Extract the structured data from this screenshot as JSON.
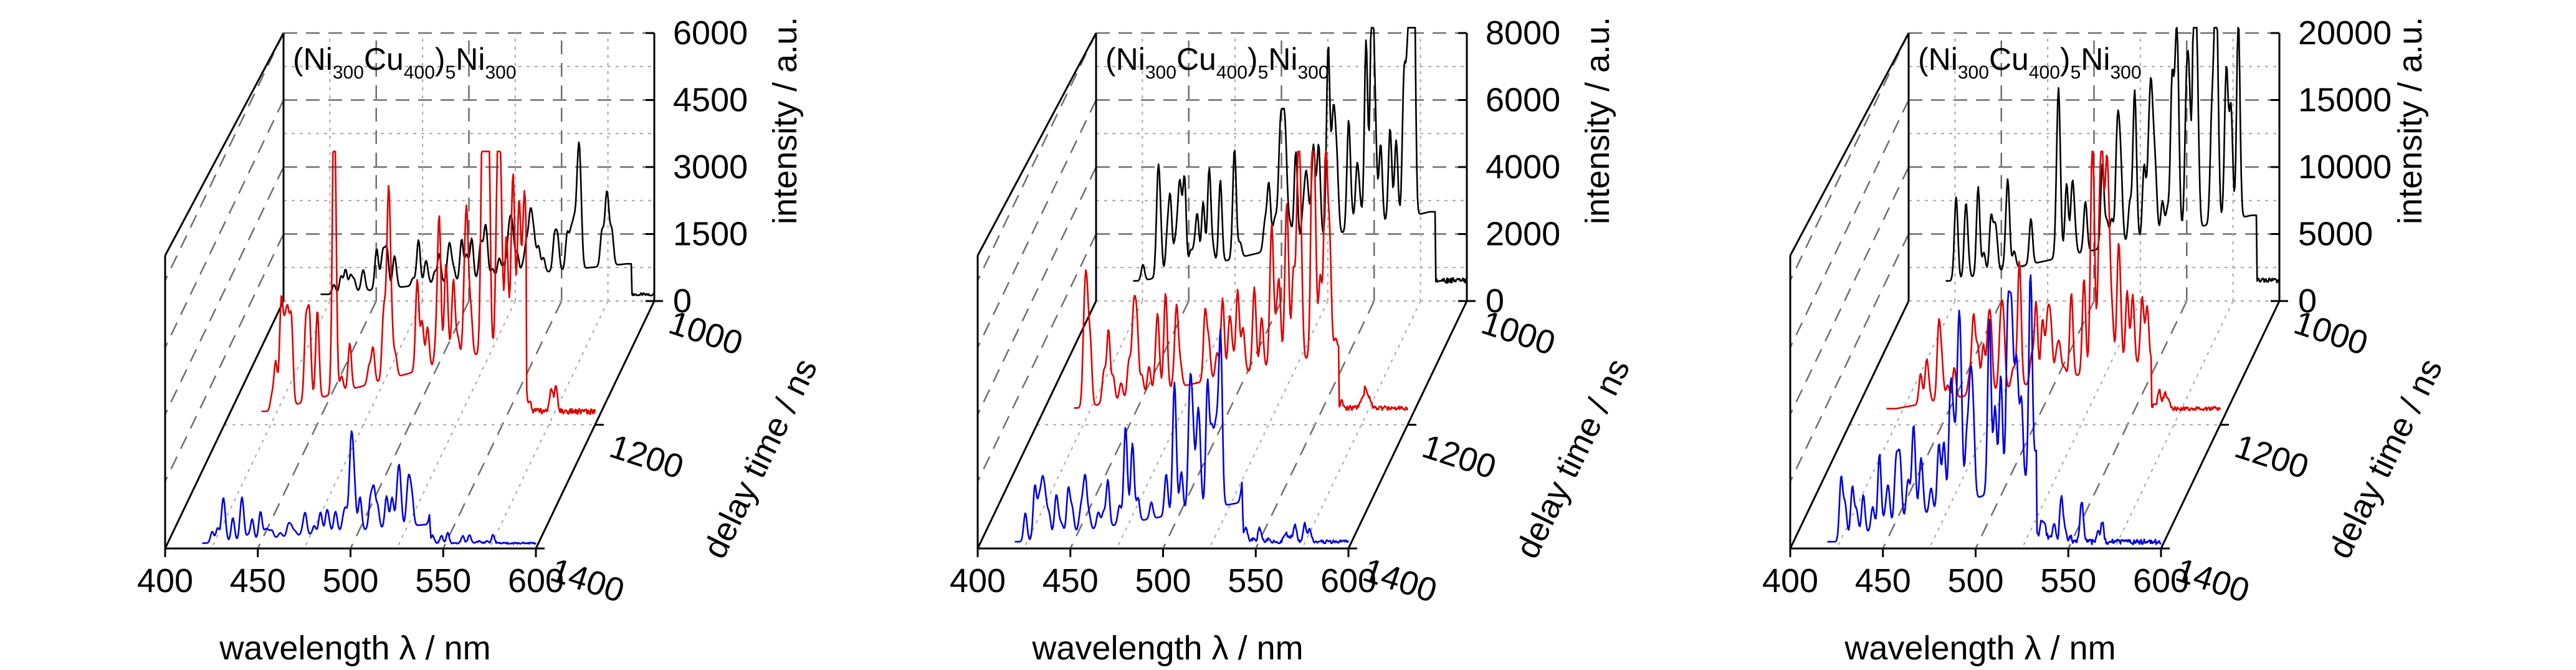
{
  "chart_data": [
    {
      "type": "line",
      "title_parts": [
        "(Ni",
        "300",
        "Cu",
        "400",
        ")",
        "5",
        "Ni",
        "300"
      ],
      "xlabel": "wavelength λ / nm",
      "ylabel": "delay time / ns",
      "zlabel": "intensity / a.u.",
      "xlim": [
        400,
        600
      ],
      "xticks": [
        "400",
        "450",
        "500",
        "550",
        "600"
      ],
      "yticks": [
        "1000",
        "1200",
        "1400"
      ],
      "zlim": [
        0,
        6000
      ],
      "zticks": [
        "0",
        "1500",
        "3000",
        "4500",
        "6000"
      ],
      "series": [
        {
          "delay": 1000,
          "color": "#000000",
          "baseline": 150,
          "peak": 2100,
          "high": [
            555,
            585
          ]
        },
        {
          "delay": 1200,
          "color": "#e00000",
          "baseline": 300,
          "peak": 4700,
          "high": [
            535,
            560
          ]
        },
        {
          "delay": 1400,
          "color": "#0000e0",
          "baseline": 120,
          "peak": 1300,
          "high": [
            500,
            540
          ]
        }
      ]
    },
    {
      "type": "line",
      "title_parts": [
        "(Ni",
        "300",
        "Cu",
        "400",
        ")",
        "5",
        "Ni",
        "300"
      ],
      "xlabel": "wavelength λ / nm",
      "ylabel": "delay time / ns",
      "zlabel": "intensity / a.u.",
      "xlim": [
        400,
        600
      ],
      "xticks": [
        "400",
        "450",
        "500",
        "550",
        "600"
      ],
      "yticks": [
        "1000",
        "1200",
        "1400"
      ],
      "zlim": [
        0,
        8000
      ],
      "zticks": [
        "0",
        "2000",
        "4000",
        "6000",
        "8000"
      ],
      "series": [
        {
          "delay": 1000,
          "color": "#000000",
          "baseline": 600,
          "peak": 6500,
          "high": [
            545,
            580
          ]
        },
        {
          "delay": 1200,
          "color": "#e00000",
          "baseline": 500,
          "peak": 5200,
          "high": [
            530,
            560
          ]
        },
        {
          "delay": 1400,
          "color": "#0000e0",
          "baseline": 200,
          "peak": 3500,
          "high": [
            505,
            540
          ]
        }
      ]
    },
    {
      "type": "line",
      "title_parts": [
        "(Ni",
        "300",
        "Cu",
        "400",
        ")",
        "5",
        "Ni",
        "300"
      ],
      "xlabel": "wavelength λ / nm",
      "ylabel": "delay time / ns",
      "zlabel": "intensity / a.u.",
      "xlim": [
        400,
        600
      ],
      "xticks": [
        "400",
        "450",
        "500",
        "550",
        "600"
      ],
      "yticks": [
        "1000",
        "1200",
        "1400"
      ],
      "zlim": [
        0,
        20000
      ],
      "zticks": [
        "0",
        "5000",
        "10000",
        "15000",
        "20000"
      ],
      "series": [
        {
          "delay": 1000,
          "color": "#000000",
          "baseline": 1500,
          "peak": 15500,
          "high": [
            540,
            585
          ]
        },
        {
          "delay": 1200,
          "color": "#e00000",
          "baseline": 1200,
          "peak": 11000,
          "high": [
            525,
            560
          ]
        },
        {
          "delay": 1400,
          "color": "#0000e0",
          "baseline": 500,
          "peak": 13500,
          "high": [
            500,
            530
          ]
        }
      ]
    }
  ]
}
